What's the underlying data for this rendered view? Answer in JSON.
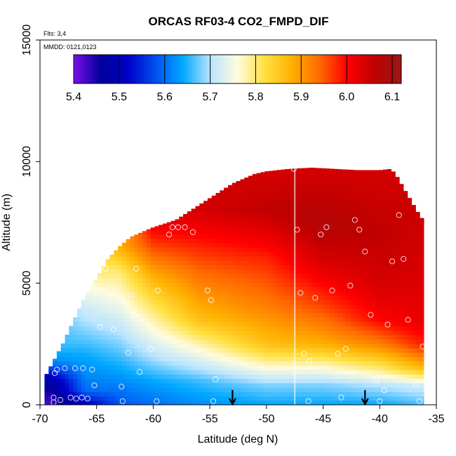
{
  "chart_data": {
    "type": "heatmap",
    "title": "ORCAS RF03-4 CO2_FMPD_DIF",
    "xlabel": "Latitude (deg N)",
    "ylabel": "Altitude (m)",
    "xlim": [
      -70,
      -35
    ],
    "ylim": [
      0,
      15000
    ],
    "x_ticks": [
      -70,
      -65,
      -60,
      -55,
      -50,
      -45,
      -40,
      -35
    ],
    "x_tick_labels": [
      "-70",
      "-65",
      "-60",
      "-55",
      "-50",
      "-45",
      "-40",
      "-35"
    ],
    "y_ticks": [
      0,
      5000,
      10000,
      15000
    ],
    "y_tick_labels": [
      "0",
      "5000",
      "10000",
      "15000"
    ],
    "annotations": {
      "flights": "Flts: 3,4",
      "dates": "MMDD: 0121,0123"
    },
    "colorbar": {
      "min": 5.4,
      "max": 6.12,
      "ticks": [
        5.4,
        5.5,
        5.6,
        5.7,
        5.8,
        5.9,
        6.0,
        6.1
      ],
      "tick_labels": [
        "5.4",
        "5.5",
        "5.6",
        "5.7",
        "5.8",
        "5.9",
        "6.0",
        "6.1"
      ],
      "colors": [
        "#7a10e8",
        "#00009a",
        "#0000c8",
        "#0050f0",
        "#00a8ff",
        "#b8e4ff",
        "#fffce0",
        "#ffe040",
        "#ffb000",
        "#ff6a00",
        "#ff0000",
        "#c00000",
        "#9a1818"
      ]
    },
    "vertical_line_x": -47.5,
    "arrows_x": [
      -53,
      -41.3
    ],
    "ceiling_profile": [
      [
        -69.5,
        1200
      ],
      [
        -68,
        2500
      ],
      [
        -67,
        3500
      ],
      [
        -66,
        4500
      ],
      [
        -65,
        5200
      ],
      [
        -64,
        6000
      ],
      [
        -63,
        6500
      ],
      [
        -62,
        6900
      ],
      [
        -61,
        7100
      ],
      [
        -60,
        7300
      ],
      [
        -58,
        7600
      ],
      [
        -57,
        7900
      ],
      [
        -56,
        8200
      ],
      [
        -55,
        8500
      ],
      [
        -54,
        8800
      ],
      [
        -53,
        9100
      ],
      [
        -52,
        9300
      ],
      [
        -51,
        9500
      ],
      [
        -50,
        9600
      ],
      [
        -48,
        9700
      ],
      [
        -46,
        9750
      ],
      [
        -44,
        9700
      ],
      [
        -42,
        9650
      ],
      [
        -40,
        9650
      ],
      [
        -39,
        9700
      ],
      [
        -38.5,
        9400
      ],
      [
        -38,
        9000
      ],
      [
        -37.5,
        8600
      ],
      [
        -37,
        8200
      ],
      [
        -36.5,
        7800
      ],
      [
        -36,
        7500
      ],
      [
        -36.3,
        6000
      ],
      [
        -36.3,
        0
      ]
    ],
    "layers": [
      {
        "lat": -69,
        "values": [
          [
            0,
            5.42
          ],
          [
            1000,
            5.48
          ],
          [
            1800,
            5.62
          ],
          [
            2500,
            5.66
          ]
        ]
      },
      {
        "lat": -66,
        "values": [
          [
            0,
            5.5
          ],
          [
            600,
            5.6
          ],
          [
            2000,
            5.64
          ],
          [
            3500,
            5.7
          ],
          [
            4500,
            5.74
          ],
          [
            5500,
            5.8
          ]
        ]
      },
      {
        "lat": -63,
        "values": [
          [
            0,
            5.58
          ],
          [
            1000,
            5.62
          ],
          [
            2500,
            5.68
          ],
          [
            4000,
            5.74
          ],
          [
            5500,
            5.8
          ],
          [
            6500,
            5.88
          ]
        ]
      },
      {
        "lat": -60,
        "values": [
          [
            0,
            5.6
          ],
          [
            1000,
            5.64
          ],
          [
            2000,
            5.7
          ],
          [
            3500,
            5.78
          ],
          [
            5000,
            5.86
          ],
          [
            6500,
            5.96
          ],
          [
            7500,
            6.02
          ]
        ]
      },
      {
        "lat": -56,
        "values": [
          [
            0,
            5.62
          ],
          [
            1000,
            5.66
          ],
          [
            2000,
            5.74
          ],
          [
            3500,
            5.86
          ],
          [
            5000,
            5.92
          ],
          [
            6500,
            5.98
          ],
          [
            8000,
            6.04
          ]
        ]
      },
      {
        "lat": -50,
        "values": [
          [
            0,
            5.64
          ],
          [
            800,
            5.68
          ],
          [
            1500,
            5.76
          ],
          [
            2500,
            5.86
          ],
          [
            4000,
            5.92
          ],
          [
            6000,
            5.98
          ],
          [
            8000,
            6.06
          ],
          [
            9600,
            6.04
          ]
        ]
      },
      {
        "lat": -45,
        "values": [
          [
            0,
            5.64
          ],
          [
            800,
            5.68
          ],
          [
            1500,
            5.76
          ],
          [
            2500,
            5.88
          ],
          [
            4000,
            5.96
          ],
          [
            6000,
            6.04
          ],
          [
            7500,
            6.08
          ],
          [
            9700,
            6.04
          ]
        ]
      },
      {
        "lat": -40,
        "values": [
          [
            0,
            5.64
          ],
          [
            800,
            5.7
          ],
          [
            1500,
            5.8
          ],
          [
            2500,
            5.92
          ],
          [
            3500,
            6.0
          ],
          [
            5000,
            6.04
          ],
          [
            7000,
            6.06
          ],
          [
            9600,
            6.04
          ]
        ]
      },
      {
        "lat": -36.5,
        "values": [
          [
            0,
            5.66
          ],
          [
            800,
            5.72
          ],
          [
            1500,
            5.86
          ],
          [
            2500,
            5.98
          ],
          [
            3500,
            6.02
          ],
          [
            6000,
            6.04
          ],
          [
            7800,
            6.05
          ]
        ]
      }
    ],
    "sample_points": [
      [
        -68.8,
        300
      ],
      [
        -68.8,
        100
      ],
      [
        -68.2,
        200
      ],
      [
        -67.3,
        300
      ],
      [
        -66.8,
        250
      ],
      [
        -66.3,
        300
      ],
      [
        -65.8,
        250
      ],
      [
        -68.5,
        1450
      ],
      [
        -67.8,
        1500
      ],
      [
        -66.9,
        1500
      ],
      [
        -66.2,
        1500
      ],
      [
        -65.4,
        1450
      ],
      [
        -68.7,
        1300
      ],
      [
        -65.2,
        800
      ],
      [
        -64.7,
        3200
      ],
      [
        -64.2,
        5600
      ],
      [
        -63.5,
        3100
      ],
      [
        -62.8,
        750
      ],
      [
        -62.7,
        150
      ],
      [
        -62.2,
        2150
      ],
      [
        -62.0,
        4500
      ],
      [
        -61.7,
        3700
      ],
      [
        -61.5,
        5600
      ],
      [
        -61.2,
        1350
      ],
      [
        -60.2,
        2300
      ],
      [
        -59.7,
        150
      ],
      [
        -59.6,
        4700
      ],
      [
        -58.6,
        7000
      ],
      [
        -58.3,
        7300
      ],
      [
        -57.8,
        7300
      ],
      [
        -57.2,
        7300
      ],
      [
        -56.5,
        7100
      ],
      [
        -56.6,
        8300
      ],
      [
        -55.2,
        4700
      ],
      [
        -54.9,
        4300
      ],
      [
        -54.5,
        1050
      ],
      [
        -54.7,
        150
      ],
      [
        -47.6,
        9700
      ],
      [
        -47.3,
        7200
      ],
      [
        -47.0,
        4600
      ],
      [
        -46.7,
        2100
      ],
      [
        -46.2,
        1800
      ],
      [
        -45.7,
        4400
      ],
      [
        -45.2,
        7000
      ],
      [
        -44.7,
        7300
      ],
      [
        -44.2,
        4700
      ],
      [
        -43.7,
        2100
      ],
      [
        -43.4,
        300
      ],
      [
        -43.0,
        2300
      ],
      [
        -42.6,
        4900
      ],
      [
        -42.2,
        7600
      ],
      [
        -41.8,
        7200
      ],
      [
        -41.3,
        6300
      ],
      [
        -40.8,
        3700
      ],
      [
        -40.3,
        1000
      ],
      [
        -40.0,
        150
      ],
      [
        -39.6,
        600
      ],
      [
        -39.3,
        3300
      ],
      [
        -38.9,
        5900
      ],
      [
        -38.3,
        7800
      ],
      [
        -37.9,
        6000
      ],
      [
        -37.5,
        3500
      ],
      [
        -36.8,
        800
      ],
      [
        -36.5,
        150
      ],
      [
        -36.2,
        2400
      ],
      [
        -35.8,
        4900
      ],
      [
        -35.2,
        7600
      ],
      [
        -46.3,
        150
      ]
    ]
  }
}
